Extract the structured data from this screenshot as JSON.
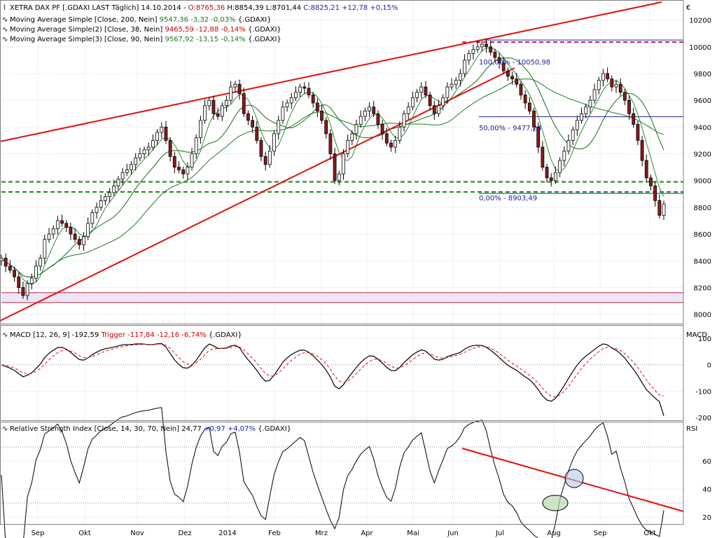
{
  "colors": {
    "price": "#000000",
    "candle_down": "#8b1a1a",
    "sma200": "#1e7a1e",
    "sma38": "#2e8b2e",
    "sma90": "#1a6a1a",
    "trendline": "#e01010",
    "support": "#1a8a1a",
    "fib": "#2020a0",
    "resistance": "#c0185a",
    "band_fill": "#ece6f6",
    "band_line": "#c02040",
    "macd": "#000000",
    "trigger": "#e01010",
    "rsi": "#000000",
    "grid": "#d0d0d0",
    "frame": "#808080",
    "highlight_fill": "#b8d8b0",
    "highlight_fill_2": "#b8c8e8"
  },
  "header": {
    "title_prefix": "XETRA DAX PF [.GDAXI LAST Täglich] 14.10.2014 - ",
    "open": "O:8765,36",
    "hl": " H:8854,39 L:8701,44 ",
    "close": "C:8825,21 +12,78 +0,15%",
    "sma200_label": "Moving Average Simple [Close, 200, Nein]",
    "sma200_value": "9547,36 -3,32 -0,03%",
    "sma200_suffix": " {.GDAXI}",
    "sma38_label": "Moving Average Simple(2) [Close, 38, Nein]",
    "sma38_value": "9465,59 -12,88 -0,14%",
    "sma38_suffix": " {.GDAXI}",
    "sma90_label": "Moving Average Simple(3) [Close, 90, Nein]",
    "sma90_value": "9567,92 -13,15 -0,14%",
    "sma90_suffix": " {.GDAXI}",
    "currency": "€"
  },
  "fib": {
    "level_100": "100,00% - 10050,98",
    "level_50": "50,00% - 9477,24",
    "level_0": "0,00% - 8903,49"
  },
  "macd_header": {
    "label": "MACD [12, 26, 9] ",
    "value": "-192,59",
    "trigger": " Trigger -117,84 -12,16 -6,74%",
    "suffix": " {.GDAXI}",
    "axis_title": "MACD"
  },
  "rsi_header": {
    "label": "Relative Strength Index [Close, 14, 30, 70, Nein] 24,77 ",
    "value": "+0,97 +4,07%",
    "suffix": " {.GDAXI}",
    "axis_title": "RSI"
  },
  "chart_data": [
    {
      "type": "candlestick",
      "title": "XETRA DAX PF [.GDAXI LAST Täglich] 14.10.2014",
      "ylim": [
        7930,
        10350
      ],
      "y_ticks": [
        8000,
        8200,
        8400,
        8600,
        8800,
        9000,
        9200,
        9400,
        9600,
        9800,
        10000,
        10200
      ],
      "y_tick_labels": [
        "8000",
        "8200",
        "8400",
        "8600",
        "8800",
        "9000",
        "9200",
        "9400",
        "9600",
        "9800",
        "10000",
        "10200"
      ],
      "x_labels": [
        "Sep",
        "Okt",
        "Nov",
        "Dez",
        "2014",
        "Feb",
        "Mrz",
        "Apr",
        "Mai",
        "Jun",
        "Jul",
        "Aug",
        "Sep",
        "Okt"
      ],
      "close": [
        8420,
        8360,
        8330,
        8280,
        8200,
        8140,
        8230,
        8270,
        8360,
        8420,
        8560,
        8600,
        8640,
        8700,
        8680,
        8650,
        8600,
        8560,
        8520,
        8580,
        8680,
        8760,
        8800,
        8850,
        8880,
        8910,
        8960,
        9010,
        9060,
        9080,
        9120,
        9170,
        9200,
        9230,
        9250,
        9300,
        9360,
        9400,
        9300,
        9180,
        9100,
        9080,
        9050,
        9100,
        9200,
        9320,
        9450,
        9560,
        9600,
        9500,
        9480,
        9560,
        9600,
        9700,
        9720,
        9650,
        9500,
        9450,
        9400,
        9300,
        9180,
        9120,
        9220,
        9350,
        9450,
        9550,
        9580,
        9620,
        9660,
        9700,
        9690,
        9640,
        9580,
        9520,
        9450,
        9350,
        9200,
        9000,
        9050,
        9200,
        9300,
        9350,
        9420,
        9480,
        9520,
        9550,
        9500,
        9420,
        9350,
        9280,
        9250,
        9300,
        9400,
        9500,
        9550,
        9620,
        9660,
        9700,
        9640,
        9560,
        9500,
        9560,
        9620,
        9700,
        9720,
        9750,
        9800,
        9900,
        9950,
        9980,
        10000,
        10020,
        10000,
        9960,
        9920,
        9880,
        9820,
        9780,
        9760,
        9720,
        9640,
        9580,
        9520,
        9400,
        9250,
        9100,
        9020,
        9000,
        9060,
        9150,
        9220,
        9300,
        9380,
        9450,
        9500,
        9550,
        9600,
        9680,
        9750,
        9800,
        9760,
        9700,
        9720,
        9660,
        9600,
        9500,
        9420,
        9300,
        9150,
        9020,
        8960,
        8850,
        8740,
        8825
      ],
      "support_lines": [
        8990,
        8915
      ],
      "resistance_line": 10035,
      "fib_levels": [
        {
          "percent": "100,00%",
          "value": 10050.98
        },
        {
          "percent": "50,00%",
          "value": 9477.24
        },
        {
          "percent": "0,00%",
          "value": 8903.49
        }
      ],
      "support_band": [
        8088,
        8162
      ],
      "series": [
        {
          "name": "Moving Average Simple [Close, 200, Nein]",
          "last": 9547.36
        },
        {
          "name": "Moving Average Simple(2) [Close, 38, Nein]",
          "last": 9465.59
        },
        {
          "name": "Moving Average Simple(3) [Close, 90, Nein]",
          "last": 9567.92
        }
      ]
    },
    {
      "type": "line",
      "title": "MACD [12, 26, 9]",
      "ylim": [
        -210,
        150
      ],
      "y_ticks": [
        -200,
        -100,
        0,
        100
      ],
      "y_tick_labels": [
        "-200",
        "-100",
        "0",
        "100"
      ],
      "series": [
        {
          "name": "MACD",
          "last": -192.59
        },
        {
          "name": "Trigger",
          "last": -117.84
        }
      ]
    },
    {
      "type": "line",
      "title": "Relative Strength Index [Close, 14, 30, 70, Nein]",
      "ylim": [
        15,
        88
      ],
      "y_ticks": [
        20,
        40,
        60
      ],
      "y_tick_labels": [
        "20",
        "40",
        "60"
      ],
      "reference_levels": [
        30,
        70
      ],
      "series": [
        {
          "name": "RSI",
          "last": 24.77
        }
      ]
    }
  ]
}
